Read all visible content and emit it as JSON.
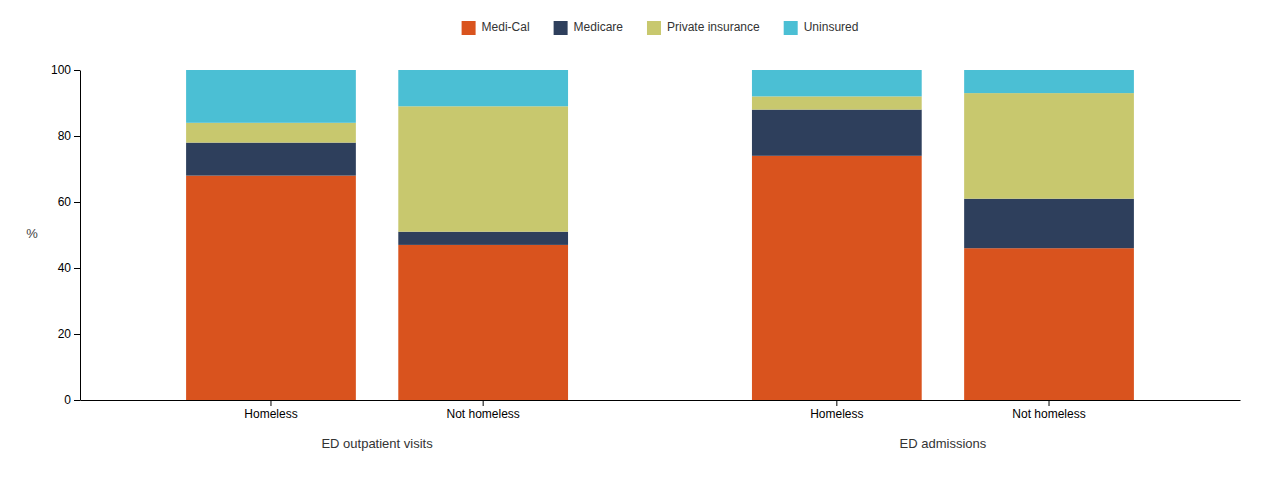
{
  "chart_data": {
    "type": "bar",
    "stacked": true,
    "ylabel": "%",
    "groups": [
      "ED outpatient visits",
      "ED admissions"
    ],
    "categories": [
      "Homeless",
      "Not homeless",
      "Homeless",
      "Not homeless"
    ],
    "series": [
      {
        "name": "Medi-Cal",
        "color": "#d9531e",
        "values": [
          68,
          47,
          74,
          46
        ]
      },
      {
        "name": "Medicare",
        "color": "#2e3f5c",
        "values": [
          10,
          4,
          14,
          15
        ]
      },
      {
        "name": "Private insurance",
        "color": "#c8c86e",
        "values": [
          6,
          38,
          4,
          32
        ]
      },
      {
        "name": "Uninsured",
        "color": "#4bbfd4",
        "values": [
          16,
          11,
          8,
          7
        ]
      }
    ],
    "ylim": [
      0,
      100
    ],
    "yticks": [
      0,
      20,
      40,
      60,
      80,
      100
    ],
    "grid": false,
    "legend": "top"
  }
}
